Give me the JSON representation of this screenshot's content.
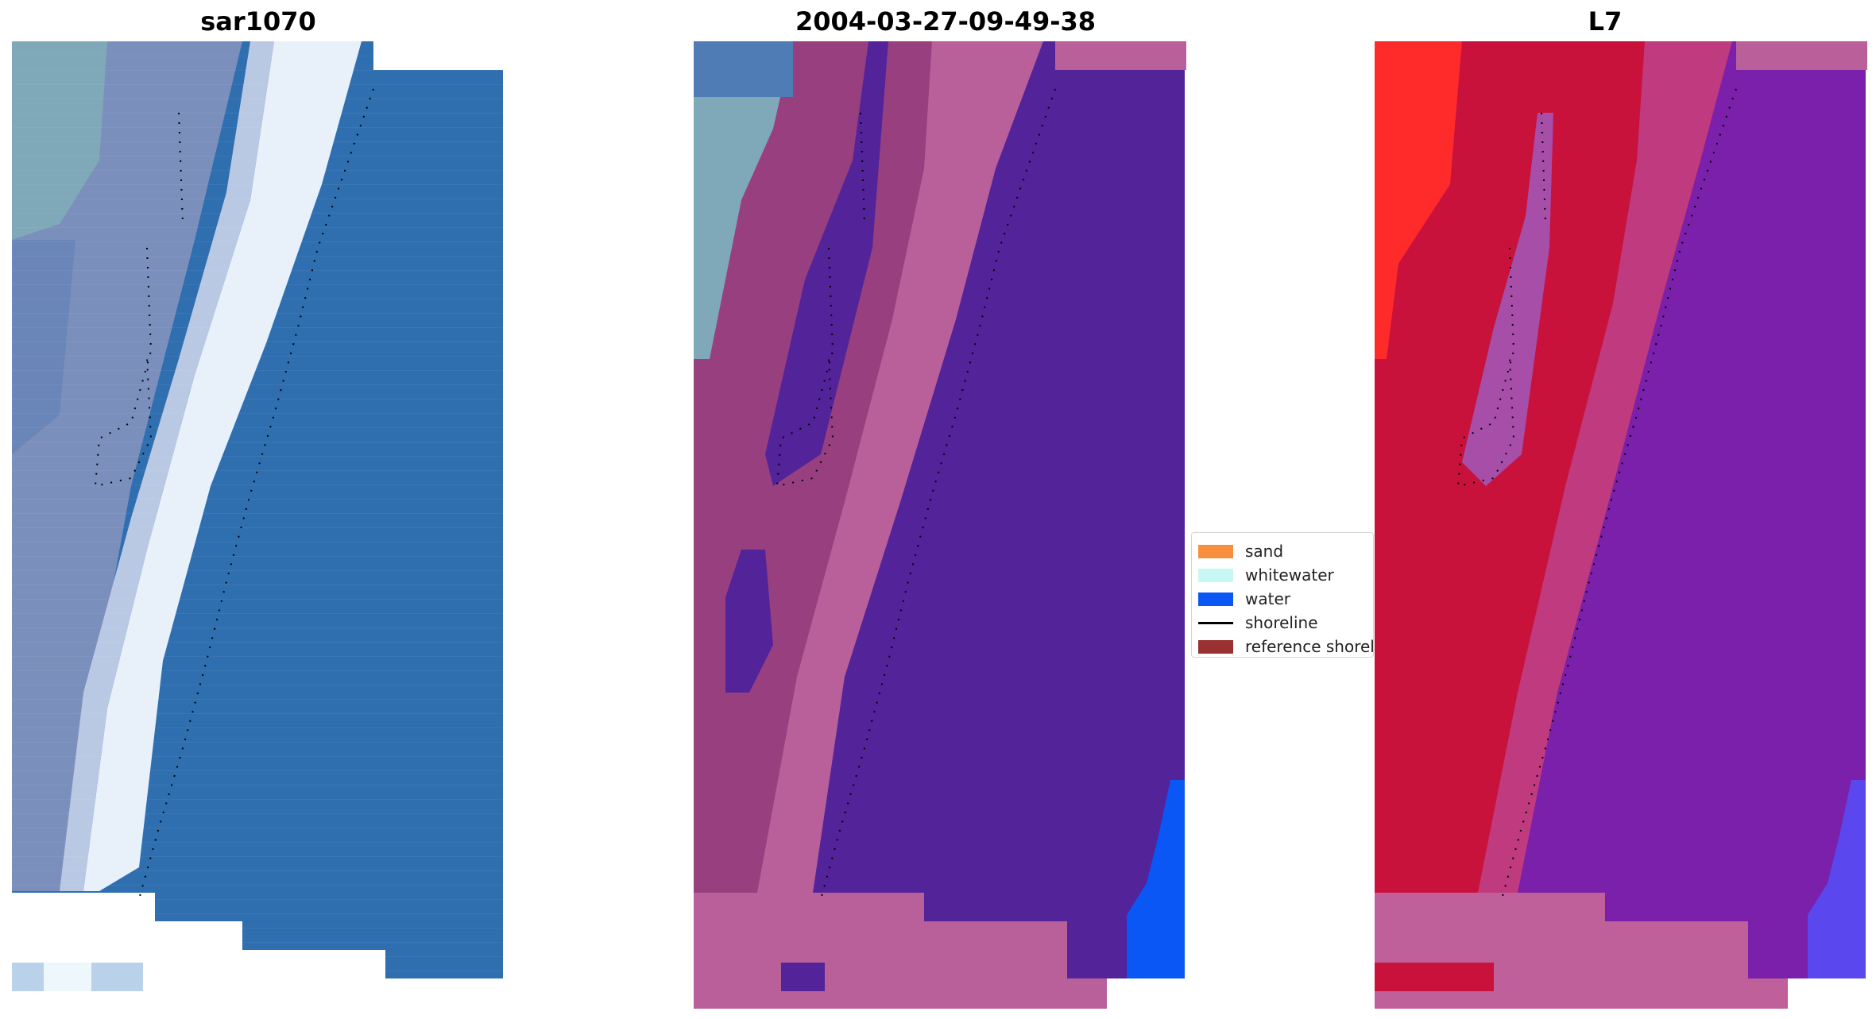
{
  "panels": [
    {
      "title": "sar1070"
    },
    {
      "title": "2004-03-27-09-49-38"
    },
    {
      "title": "L7"
    }
  ],
  "legend": {
    "items": [
      {
        "label": "sand",
        "color": "#f78f3f",
        "kind": "patch"
      },
      {
        "label": "whitewater",
        "color": "#c8f8f4",
        "kind": "patch"
      },
      {
        "label": "water",
        "color": "#0a57f5",
        "kind": "patch"
      },
      {
        "label": "shoreline",
        "color": "#000000",
        "kind": "line"
      },
      {
        "label": "reference shoreline",
        "color": "#9a3030",
        "kind": "patch"
      }
    ]
  },
  "colors": {
    "water_rgb": "#2f6fb0",
    "surf_rgb": "#e8f2fa",
    "land_rgb": "#7f90b8",
    "classified_water": "#53239a",
    "classified_land": "#b9609a",
    "classified_water_bright": "#0a57f5",
    "mndwi_land": "#c8123c",
    "mndwi_water": "#7820a8",
    "mndwi_bright_land": "#ff2a2a"
  }
}
